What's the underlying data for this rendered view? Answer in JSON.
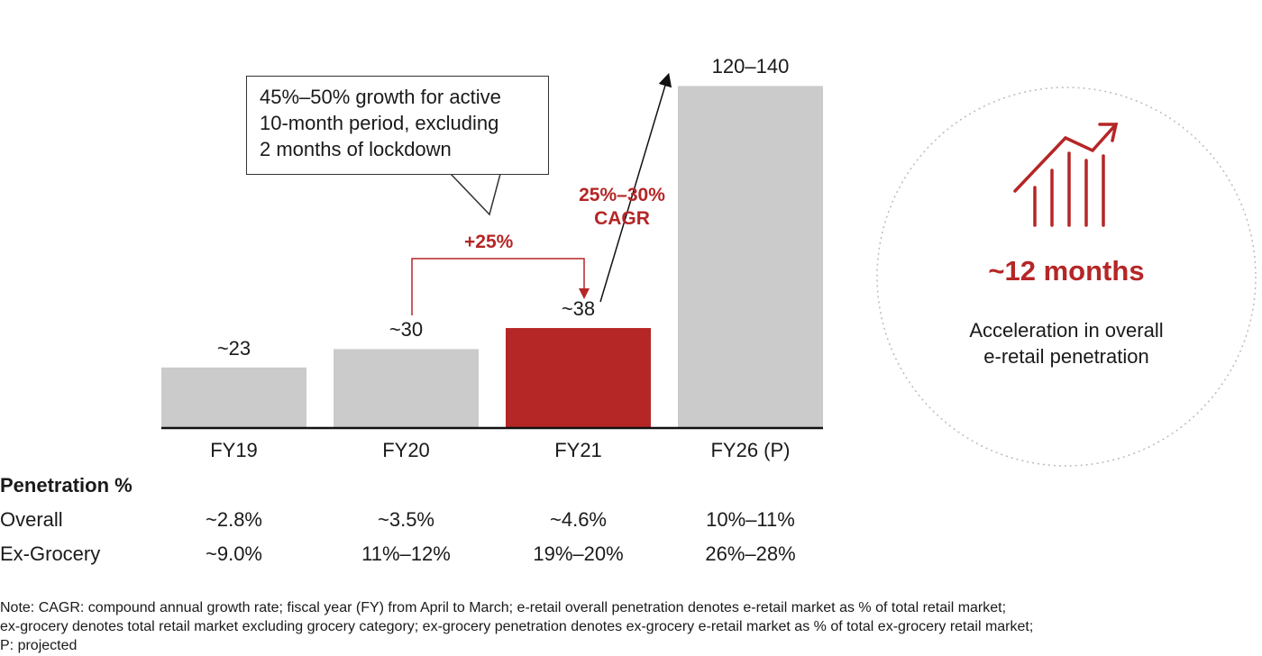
{
  "chart_data": {
    "type": "bar",
    "title": "",
    "xlabel": "",
    "ylabel": "",
    "categories": [
      "FY19",
      "FY20",
      "FY21",
      "FY26 (P)"
    ],
    "values": [
      23,
      30,
      38,
      130
    ],
    "data_labels": [
      "~23",
      "~30",
      "~38",
      "120–140"
    ],
    "highlight_index": 2,
    "colors": {
      "default": "#cbcbcb",
      "highlight": "#b52626",
      "accent": "#b52626"
    },
    "grid": false,
    "annotations": {
      "callout": [
        "45%–50% growth for active",
        "10-month period, excluding",
        "2 months of lockdown"
      ],
      "growth": "+25%",
      "cagr": [
        "25%–30%",
        "CAGR"
      ]
    }
  },
  "table": {
    "header": "Penetration %",
    "rows": [
      {
        "label": "Overall",
        "values": [
          "~2.8%",
          "~3.5%",
          "~4.6%",
          "10%–11%"
        ]
      },
      {
        "label": "Ex-Grocery",
        "values": [
          "~9.0%",
          "11%–12%",
          "19%–20%",
          "26%–28%"
        ]
      }
    ]
  },
  "side_panel": {
    "icon": "growth-chart-icon",
    "headline": "~12 months",
    "text": [
      "Acceleration in overall",
      "e-retail penetration"
    ]
  },
  "note": [
    "Note: CAGR: compound annual growth rate; fiscal year (FY) from April to March; e-retail overall penetration denotes e-retail market as % of total retail market;",
    "ex-grocery denotes total retail market excluding grocery category; ex-grocery penetration denotes ex-grocery e-retail market as % of total ex-grocery retail market;",
    "P: projected"
  ]
}
